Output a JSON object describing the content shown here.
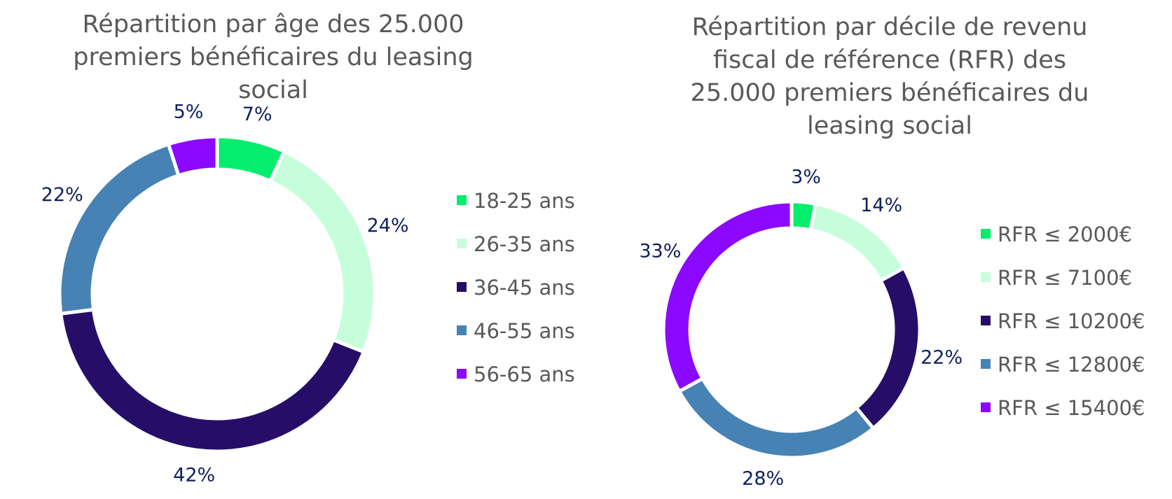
{
  "chart_data": [
    {
      "type": "pie",
      "title": "Répartition par âge des 25.000 premiers bénéficaires du leasing social",
      "categories": [
        "18-25 ans",
        "26-35 ans",
        "36-45 ans",
        "46-55 ans",
        "56-65 ans"
      ],
      "values": [
        7,
        24,
        42,
        22,
        5
      ],
      "value_labels": [
        "7%",
        "24%",
        "42%",
        "22%",
        "5%"
      ],
      "colors": [
        "#05ed6c",
        "#c6fedb",
        "#260e68",
        "#4682b4",
        "#8b09fe"
      ],
      "donut": true,
      "legend": "right"
    },
    {
      "type": "pie",
      "title": "Répartition par décile de revenu fiscal de référence (RFR) des 25.000 premiers bénéficaires du leasing social",
      "categories": [
        "RFR ≤ 2000€",
        "RFR ≤ 7100€",
        "RFR ≤ 10200€",
        "RFR ≤ 12800€",
        "RFR ≤ 15400€"
      ],
      "values": [
        3,
        14,
        22,
        28,
        33
      ],
      "value_labels": [
        "3%",
        "14%",
        "22%",
        "28%",
        "33%"
      ],
      "colors": [
        "#05ed6c",
        "#c6fedb",
        "#260e68",
        "#4682b4",
        "#8b09fe"
      ],
      "donut": true,
      "legend": "right"
    }
  ]
}
